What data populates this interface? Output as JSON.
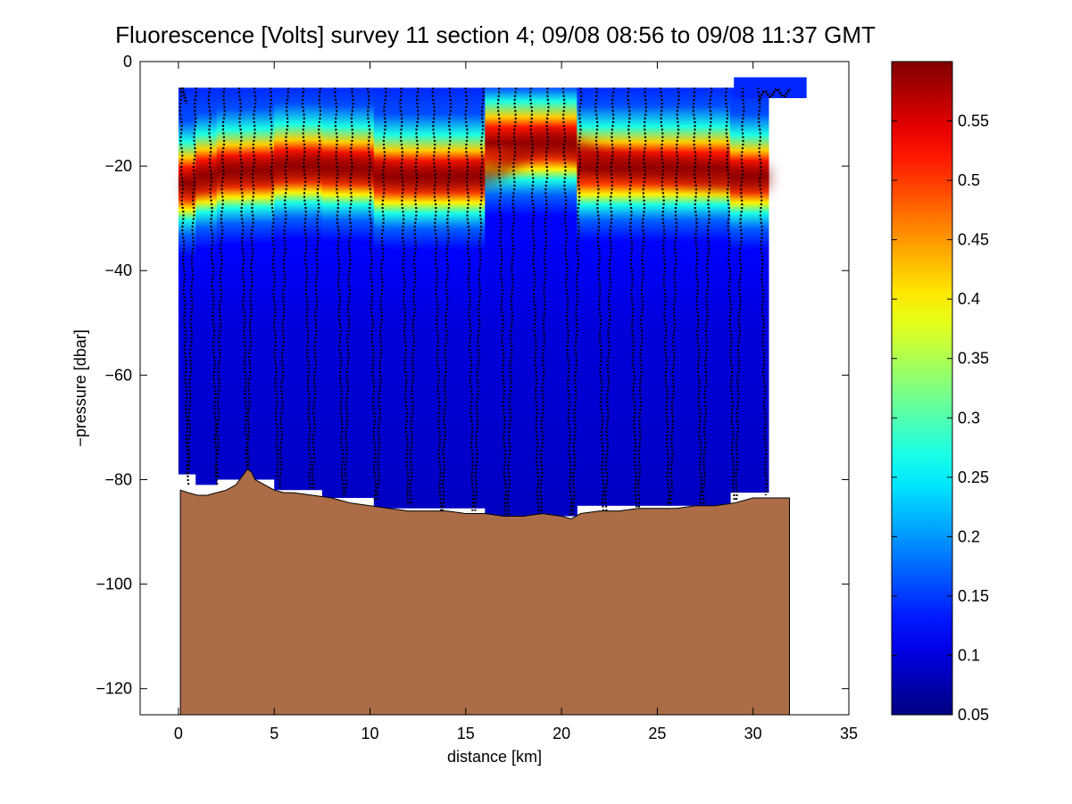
{
  "chart_data": [
    {
      "type": "heatmap",
      "title": "Fluorescence [Volts] survey 11 section 4; 09/08 08:56 to 09/08 11:37 GMT",
      "xlabel": "distance [km]",
      "ylabel": "−pressure [dbar]",
      "xlim": [
        -2,
        35
      ],
      "ylim": [
        -125,
        0
      ],
      "xticks": [
        0,
        5,
        10,
        15,
        20,
        25,
        30,
        35
      ],
      "xtick_labels": [
        "0",
        "5",
        "10",
        "15",
        "20",
        "25",
        "30",
        "35"
      ],
      "yticks": [
        0,
        -20,
        -40,
        -60,
        -80,
        -100,
        -120
      ],
      "ytick_labels": [
        "0",
        "−20",
        "−40",
        "−60",
        "−80",
        "−100",
        "−120"
      ],
      "grid": false,
      "colormap": "jet",
      "clim": [
        0.05,
        0.6
      ],
      "colors": {
        "seafloor": "#ab6c47",
        "casts": "#000000"
      },
      "chlorophyll_maximum": {
        "x": [
          0,
          2,
          4,
          6,
          8,
          10,
          12,
          14,
          16,
          17,
          18,
          19,
          20,
          22,
          24,
          26,
          28,
          30,
          31
        ],
        "depth": [
          -24,
          -21,
          -21,
          -20,
          -20,
          -21,
          -22,
          -22,
          -21,
          -19,
          -16,
          -15,
          -16,
          -19,
          -20,
          -21,
          -22,
          -22,
          -22
        ]
      },
      "sections": [
        {
          "x": [
            0,
            0.9
          ],
          "bottom": -79
        },
        {
          "x": [
            0.9,
            2.0
          ],
          "bottom": -81
        },
        {
          "x": [
            2.0,
            3.5
          ],
          "bottom": -80
        },
        {
          "x": [
            3.5,
            5.0
          ],
          "bottom": -80
        },
        {
          "x": [
            5.0,
            7.5
          ],
          "bottom": -82
        },
        {
          "x": [
            7.5,
            10.2
          ],
          "bottom": -83.5
        },
        {
          "x": [
            10.2,
            16.0
          ],
          "bottom": -85.5
        },
        {
          "x": [
            16.0,
            20.8
          ],
          "bottom": -87
        },
        {
          "x": [
            20.8,
            28.8
          ],
          "bottom": -85
        },
        {
          "x": [
            28.8,
            30.8
          ],
          "bottom": -82.5
        }
      ],
      "surface_patch": {
        "x": [
          29.0,
          32.8
        ],
        "top": -3,
        "bottom": -7
      },
      "cast_positions": [
        0.1,
        0.9,
        1.6,
        2.4,
        3.2,
        4.0,
        4.8,
        5.7,
        6.5,
        7.4,
        8.2,
        9.1,
        9.9,
        10.8,
        11.6,
        12.5,
        13.3,
        14.2,
        15.0,
        15.9,
        16.7,
        17.6,
        18.4,
        19.3,
        20.1,
        21.0,
        21.8,
        22.7,
        23.5,
        24.4,
        25.2,
        26.1,
        26.9,
        27.8,
        28.6,
        29.5,
        30.3
      ],
      "cast_depths": [
        -79,
        -81,
        -81,
        -80,
        -80,
        -79,
        -80,
        -82,
        -82,
        -82,
        -83,
        -83,
        -84,
        -84,
        -85,
        -85,
        -86,
        -86,
        -86,
        -86,
        -87,
        -87,
        -87,
        -87,
        -87,
        -87,
        -86,
        -86,
        -86,
        -86,
        -85,
        -85,
        -85,
        -85,
        -84,
        -84,
        -83
      ],
      "seafloor": {
        "x": [
          0.1,
          0.5,
          1.0,
          1.5,
          2.0,
          2.5,
          3.0,
          3.3,
          3.6,
          3.8,
          4.0,
          4.5,
          5.0,
          5.5,
          6.0,
          7.0,
          8.0,
          9.0,
          10.0,
          11.0,
          12.0,
          13.0,
          14.0,
          15.0,
          16.0,
          17.0,
          18.0,
          19.0,
          20.0,
          20.5,
          21.0,
          22.0,
          23.0,
          24.0,
          25.0,
          26.0,
          27.0,
          28.0,
          29.0,
          30.0,
          31.0,
          31.9
        ],
        "y": [
          -82,
          -82.5,
          -83,
          -83,
          -82.5,
          -82,
          -81,
          -79.5,
          -78,
          -78.5,
          -80,
          -81,
          -82,
          -82.5,
          -82.5,
          -83,
          -83.5,
          -84.5,
          -85,
          -85.5,
          -86,
          -86,
          -86,
          -86.5,
          -86.5,
          -87,
          -87,
          -86.5,
          -87,
          -87.5,
          -86.5,
          -86,
          -86,
          -85.5,
          -85.5,
          -85.5,
          -85,
          -85,
          -84.5,
          -83.5,
          -83.5,
          -83.5
        ]
      },
      "colorbar": {
        "ticks": [
          0.1,
          0.15,
          0.2,
          0.25,
          0.3,
          0.35,
          0.4,
          0.45,
          0.5,
          0.55
        ],
        "tick_labels": [
          "0.1",
          "0.15",
          "0.2",
          "0.25",
          "0.3",
          "0.35",
          "0.4",
          "0.45",
          "0.5",
          "0.55"
        ],
        "min_label": "0.05",
        "range": [
          0.05,
          0.6
        ]
      }
    }
  ]
}
